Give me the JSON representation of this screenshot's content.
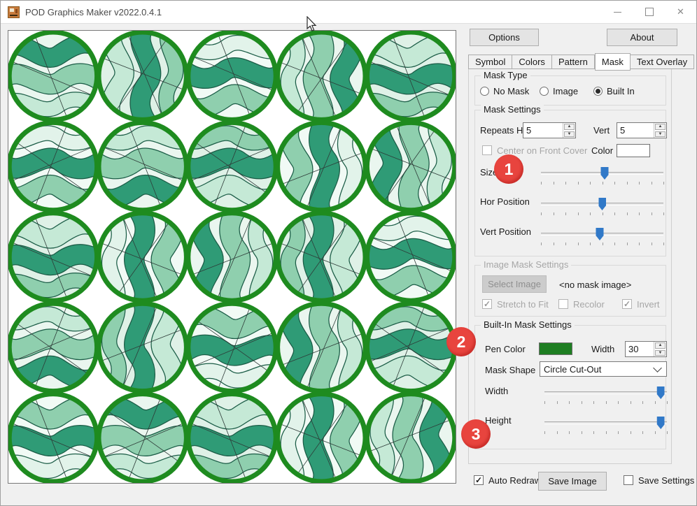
{
  "window": {
    "title": "POD Graphics Maker v2022.0.4.1"
  },
  "icons": {
    "close": "✕",
    "check": "✓",
    "spinner_up": "▲",
    "spinner_down": "▼"
  },
  "toolbar": {
    "options_label": "Options",
    "about_label": "About"
  },
  "tabs": {
    "items": [
      {
        "label": "Symbol",
        "active": false
      },
      {
        "label": "Colors",
        "active": false
      },
      {
        "label": "Pattern",
        "active": false
      },
      {
        "label": "Mask",
        "active": true
      },
      {
        "label": "Text Overlay",
        "active": false
      }
    ]
  },
  "mask_type": {
    "legend": "Mask Type",
    "options": [
      {
        "label": "No Mask",
        "selected": false
      },
      {
        "label": "Image",
        "selected": false
      },
      {
        "label": "Built In",
        "selected": true
      }
    ]
  },
  "mask_settings": {
    "legend": "Mask Settings",
    "repeats_hor_label": "Repeats Hor:",
    "repeats_hor_value": "5",
    "vert_label": "Vert",
    "vert_value": "5",
    "center_on_front_cover": {
      "label": "Center on Front Cover",
      "checked": false,
      "enabled": false
    },
    "color_label": "Color",
    "color_value": "#FFFFFF",
    "size_slider": {
      "label": "Size",
      "percent": 52
    },
    "hor_slider": {
      "label": "Hor Position",
      "percent": 50
    },
    "vert_slider": {
      "label": "Vert Position",
      "percent": 48
    }
  },
  "image_mask_settings": {
    "legend": "Image Mask Settings",
    "select_image_label": "Select Image",
    "no_image_text": "<no mask image>",
    "stretch_to_fit": {
      "label": "Stretch to Fit",
      "checked": true
    },
    "recolor": {
      "label": "Recolor",
      "checked": false
    },
    "invert": {
      "label": "Invert",
      "checked": true
    }
  },
  "built_in_settings": {
    "legend": "Built-In Mask Settings",
    "pen_color_label": "Pen Color",
    "pen_color_value": "#1E7E22",
    "pen_width_label": "Width",
    "pen_width_value": "30",
    "mask_shape_label": "Mask Shape",
    "mask_shape_value": "Circle Cut-Out",
    "width_slider": {
      "label": "Width",
      "percent": 95
    },
    "height_slider": {
      "label": "Height",
      "percent": 95
    }
  },
  "footer": {
    "auto_redraw": {
      "label": "Auto Redraw",
      "checked": true
    },
    "save_image_label": "Save Image",
    "save_settings": {
      "label": "Save Settings",
      "checked": false
    }
  },
  "annotations": {
    "color": "#E8443E",
    "items": [
      {
        "label": "1"
      },
      {
        "label": "2"
      },
      {
        "label": "3"
      }
    ]
  },
  "canvas": {
    "rows": 5,
    "cols": 5,
    "circle_border_color": "#1E8B1F",
    "band_outline_color": "#1B5C46",
    "line_color": "#2E3B38",
    "backgrounds": [
      "#EAF6EF",
      "#DFF1E7",
      "#F1FAF5"
    ],
    "palettes": [
      [
        "#2F9B76",
        "#8FCFAE",
        "#C5E9D6"
      ],
      [
        "#8FCFAE",
        "#2F9B76",
        "#E2F3EA"
      ],
      [
        "#C5E9D6",
        "#2F9B76",
        "#8FCFAE"
      ]
    ]
  }
}
